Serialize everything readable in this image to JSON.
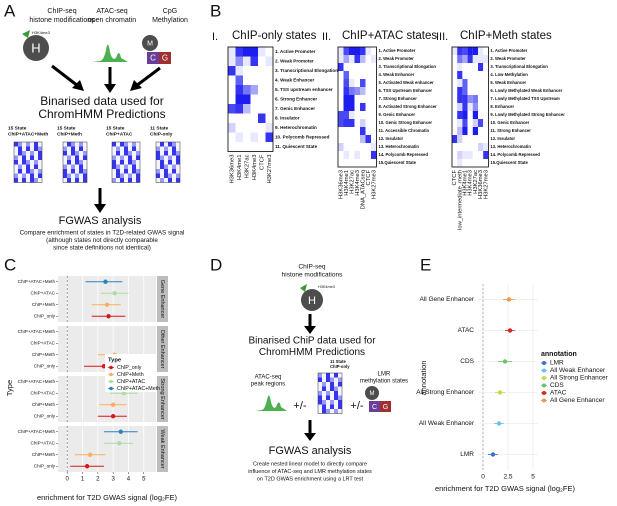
{
  "panel_A": {
    "label": "A",
    "chip_title": [
      "ChIP-seq",
      "histone modifications"
    ],
    "chip_tag": "H3K4me3",
    "chip_icon": "H",
    "atac_title": [
      "ATAC-seq",
      "open chromatin"
    ],
    "meth_title": [
      "CpG",
      "Methylation"
    ],
    "meth_icon": [
      "M",
      "C",
      "G"
    ],
    "binarised": [
      "Binarised data used for",
      "ChromHMM Predictions"
    ],
    "models": [
      [
        "15 State",
        "ChIP+ATAC+Meth"
      ],
      [
        "15 State",
        "ChIP+Meth"
      ],
      [
        "15 State",
        "ChIP+ATAC"
      ],
      [
        "11 State",
        "ChIP-only"
      ]
    ],
    "fgwas": "FGWAS analysis",
    "note": [
      "Compare enrichment of states in T2D-related GWAS signal",
      "(although states not directly comparable",
      "since state definitions not identical)"
    ]
  },
  "panel_B": {
    "label": "B",
    "heatmaps": [
      {
        "numeral": "I.",
        "title": "ChIP-only states",
        "states": [
          "1. Active Promoter",
          "2. Weak Promoter",
          "3. Transcriptional Elongation",
          "4. Weak Enhancer",
          "5. TSS upstream enhancer",
          "6. Strong Enhancer",
          "7. Genic Enhancer",
          "8. Insulator",
          "9. Heterochromatin",
          "10. Polycomb Repressed",
          "11. Quiescent State"
        ],
        "marks": [
          "H3K36me3",
          "H3K4me1",
          "H3K27ac",
          "H3K4me3",
          "CTCF",
          "H3K27me3"
        ],
        "matrix": [
          [
            0.1,
            0.9,
            1,
            1,
            0.1,
            0
          ],
          [
            0.1,
            0.5,
            0.1,
            0.9,
            0,
            0.1
          ],
          [
            0.9,
            0.1,
            0,
            0,
            0,
            0
          ],
          [
            0,
            0.7,
            0,
            0,
            0,
            0
          ],
          [
            0,
            0.9,
            0.6,
            0.4,
            0,
            0
          ],
          [
            0,
            1,
            1,
            0,
            0,
            0
          ],
          [
            0.8,
            0.9,
            0.3,
            0,
            0,
            0
          ],
          [
            0,
            0,
            0,
            0,
            0.9,
            0
          ],
          [
            0.2,
            0,
            0,
            0,
            0,
            0.1
          ],
          [
            0,
            0.1,
            0,
            0.1,
            0,
            0.9
          ],
          [
            0,
            0,
            0,
            0,
            0,
            0
          ]
        ]
      },
      {
        "numeral": "II.",
        "title": "ChIP+ATAC states",
        "states": [
          "1. Active Promoter",
          "2. Weak Promoter",
          "3. Transcriptional Elongation",
          "4. Weak Enhancer",
          "5. Activated Weak enhancer",
          "6. TSS Upstream Enhancer",
          "7. Strong Enhancer",
          "8. Activated Strong Enhancer",
          "9. Genic Enhancer",
          "10. Genic Strong Enhancer",
          "11. Accessible Chromatin",
          "12. Insulator",
          "13. Heterochromatin",
          "14. Polycomb Repressed",
          "15.Quiescent State"
        ],
        "marks": [
          "H3K36me3",
          "H3K4me1",
          "H3K27ac",
          "H3K4me3",
          "DNA_ATACseq",
          "CTCF",
          "H3K27me3"
        ],
        "matrix": [
          [
            0.1,
            0.8,
            1,
            1,
            0.9,
            0.1,
            0
          ],
          [
            0.1,
            0.4,
            0.1,
            0.9,
            0.3,
            0,
            0.1
          ],
          [
            0.9,
            0,
            0,
            0,
            0,
            0,
            0
          ],
          [
            0,
            0.7,
            0,
            0,
            0,
            0,
            0
          ],
          [
            0,
            0.8,
            0.1,
            0,
            0.8,
            0,
            0
          ],
          [
            0,
            0.9,
            0.6,
            0.5,
            0.3,
            0,
            0
          ],
          [
            0,
            1,
            1,
            0,
            0,
            0,
            0
          ],
          [
            0,
            1,
            1,
            0,
            0.9,
            0,
            0
          ],
          [
            0.8,
            0.8,
            0.1,
            0,
            0,
            0,
            0
          ],
          [
            0.8,
            0.9,
            0.9,
            0,
            0.2,
            0,
            0
          ],
          [
            0,
            0,
            0,
            0,
            0.9,
            0,
            0
          ],
          [
            0,
            0,
            0,
            0,
            0.3,
            0.9,
            0
          ],
          [
            0.2,
            0,
            0,
            0,
            0,
            0,
            0.1
          ],
          [
            0,
            0.1,
            0,
            0.1,
            0,
            0,
            0.9
          ],
          [
            0,
            0,
            0,
            0,
            0,
            0,
            0
          ]
        ]
      },
      {
        "numeral": "III.",
        "title": "ChIP+Meth states",
        "states": [
          "1. Active Promoter",
          "2. Weak Promoter",
          "3. Transcriptional Elongation",
          "4. Low Methylation",
          "5. Weak Enhancer",
          "6. Lowly Methylated Weak Enhancer",
          "7. Lowly Methylated TSS Upstream",
          "8. Enhancer",
          "9. Lowly Methylated Strong Enhancer",
          "10. Genic Enhancer",
          "11. Strong Enhancer",
          "12. Insulator",
          "13. Heterochromatin",
          "14. Polycomb Repressed",
          "15.Quiescent State"
        ],
        "marks": [
          "CTCF",
          "low_intermediate_meth",
          "H3K4me1",
          "H3K4me3",
          "H3K27ac",
          "H3K36me3",
          "H3K27me3"
        ],
        "matrix": [
          [
            0.1,
            0.9,
            0.8,
            1,
            1,
            0.1,
            0
          ],
          [
            0,
            0.6,
            0.4,
            0.9,
            0.1,
            0.1,
            0.1
          ],
          [
            0,
            0.1,
            0,
            0,
            0,
            0.9,
            0
          ],
          [
            0,
            0.9,
            0,
            0,
            0,
            0,
            0
          ],
          [
            0,
            0.1,
            0.7,
            0,
            0,
            0,
            0
          ],
          [
            0,
            0.9,
            0.7,
            0,
            0,
            0,
            0
          ],
          [
            0,
            0.9,
            0.9,
            0.5,
            0.6,
            0,
            0
          ],
          [
            0,
            0.2,
            0.9,
            0.1,
            0.5,
            0,
            0
          ],
          [
            0,
            0.9,
            1,
            0,
            1,
            0,
            0
          ],
          [
            0,
            0.1,
            0.8,
            0,
            0.2,
            0.8,
            0
          ],
          [
            0,
            0.3,
            1,
            0,
            1,
            0,
            0
          ],
          [
            0.9,
            0.2,
            0,
            0,
            0,
            0,
            0
          ],
          [
            0,
            0,
            0,
            0,
            0,
            0.2,
            0.1
          ],
          [
            0,
            0.2,
            0.1,
            0.1,
            0,
            0,
            0.9
          ],
          [
            0,
            0.1,
            0,
            0,
            0,
            0,
            0
          ]
        ]
      }
    ]
  },
  "panel_D": {
    "label": "D",
    "chip_title": [
      "ChIP-seq",
      "histone modifications"
    ],
    "chip_tag": "H3K4me3",
    "chip_icon": "H",
    "binarised": [
      "Binarised ChiP data used for",
      "ChromHMM Predictions"
    ],
    "model": [
      "11 State",
      "ChIP-only"
    ],
    "atac_title": [
      "ATAC-seq",
      "peak regions"
    ],
    "plus_minus": [
      "+/-",
      "+/-"
    ],
    "lmr_title": [
      "LMR",
      "methylation states"
    ],
    "meth_icon": [
      "M",
      "C",
      "G"
    ],
    "fgwas": "FGWAS analysis",
    "note": [
      "Create nested linear model to directly compare",
      "influence of ATAC-seq and LMR methylation states",
      "on T2D GWAS enrichment using a LRT test"
    ]
  },
  "chart_data": [
    {
      "type": "forest",
      "panel_label": "C",
      "x_label": "enrichment for T2D GWAS signal (log₂FE)",
      "y_label": "Type",
      "legend_title": "Type",
      "facets": [
        "Gene Enhancer",
        "Other Enhancer",
        "Strong Enhancer",
        "Weak Enhancer"
      ],
      "series": [
        {
          "name": "ChIP_only",
          "color": "#d7191c",
          "values": [
            2.7,
            2.4,
            3.0,
            1.3
          ],
          "ci_low": [
            1.6,
            1.1,
            2.0,
            0.2
          ],
          "ci_high": [
            3.8,
            3.5,
            3.9,
            2.4
          ]
        },
        {
          "name": "ChIP+Meth",
          "color": "#fdae61",
          "values": [
            2.6,
            3.1,
            3.0,
            1.5
          ],
          "ci_low": [
            1.6,
            2.0,
            2.1,
            0.5
          ],
          "ci_high": [
            3.5,
            4.1,
            3.9,
            2.5
          ]
        },
        {
          "name": "ChIP+ATAC",
          "color": "#abdda4",
          "values": [
            3.1,
            null,
            3.7,
            3.4
          ],
          "ci_low": [
            2.2,
            null,
            2.8,
            2.4
          ],
          "ci_high": [
            4.0,
            null,
            4.6,
            4.3
          ]
        },
        {
          "name": "ChIP+ATAC+Meth",
          "color": "#2b83ba",
          "values": [
            2.5,
            null,
            3.9,
            3.5
          ],
          "ci_low": [
            1.2,
            null,
            2.9,
            2.4
          ],
          "ci_high": [
            3.6,
            null,
            4.9,
            4.6
          ]
        }
      ],
      "xlim": [
        -0.6,
        5.8
      ],
      "xticks": [
        0,
        1,
        2,
        3,
        4,
        5
      ],
      "grid": true
    },
    {
      "type": "dot",
      "panel_label": "E",
      "x_label": "enrichment for T2D GWAS signal (log₂FE)",
      "y_label": "annotation",
      "legend_title": "annotation",
      "categories": [
        "LMR",
        "All Weak Enhancer",
        "All Strong Enhancer",
        "CDS",
        "ATAC",
        "All Gene Enhancer"
      ],
      "colors": [
        "#3b6fd1",
        "#6ec1e8",
        "#c9d64a",
        "#6cc26a",
        "#d62728",
        "#f0964a"
      ],
      "values": [
        1.0,
        1.6,
        1.7,
        2.2,
        2.7,
        2.6
      ],
      "ci_low": [
        0.5,
        1.1,
        1.2,
        1.5,
        2.2,
        2.0
      ],
      "ci_high": [
        1.5,
        2.1,
        2.2,
        2.9,
        3.2,
        3.2
      ],
      "xlim": [
        -0.5,
        5.5
      ],
      "xticks": [
        0,
        2.5,
        5
      ],
      "grid": true
    }
  ]
}
